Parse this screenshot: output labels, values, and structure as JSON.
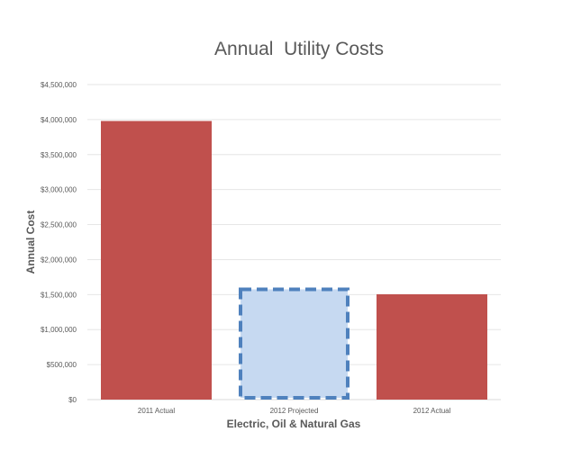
{
  "chart_data": {
    "type": "bar",
    "title": "Annual  Utility Costs",
    "xlabel": "Electric, Oil & Natural Gas",
    "ylabel": "Annual Cost",
    "categories": [
      "2011 Actual",
      "2012 Projected",
      "2012 Actual"
    ],
    "values": [
      3980000,
      1575000,
      1505000
    ],
    "bar_styles": [
      "solid",
      "dashed",
      "solid"
    ],
    "ylim": [
      0,
      4500000
    ],
    "yticks": [
      0,
      500000,
      1000000,
      1500000,
      2000000,
      2500000,
      3000000,
      3500000,
      4000000,
      4500000
    ],
    "ytick_labels": [
      "$0",
      "$500,000",
      "$1,000,000",
      "$1,500,000",
      "$2,000,000",
      "$2,500,000",
      "$3,000,000",
      "$3,500,000",
      "$4,000,000",
      "$4,500,000"
    ],
    "grid": true,
    "legend": "none",
    "colors": {
      "solid_fill": "#C0504D",
      "projected_fill": "#C6D9F1",
      "projected_border": "#4F81BD",
      "grid": "#E6E6E6"
    }
  }
}
